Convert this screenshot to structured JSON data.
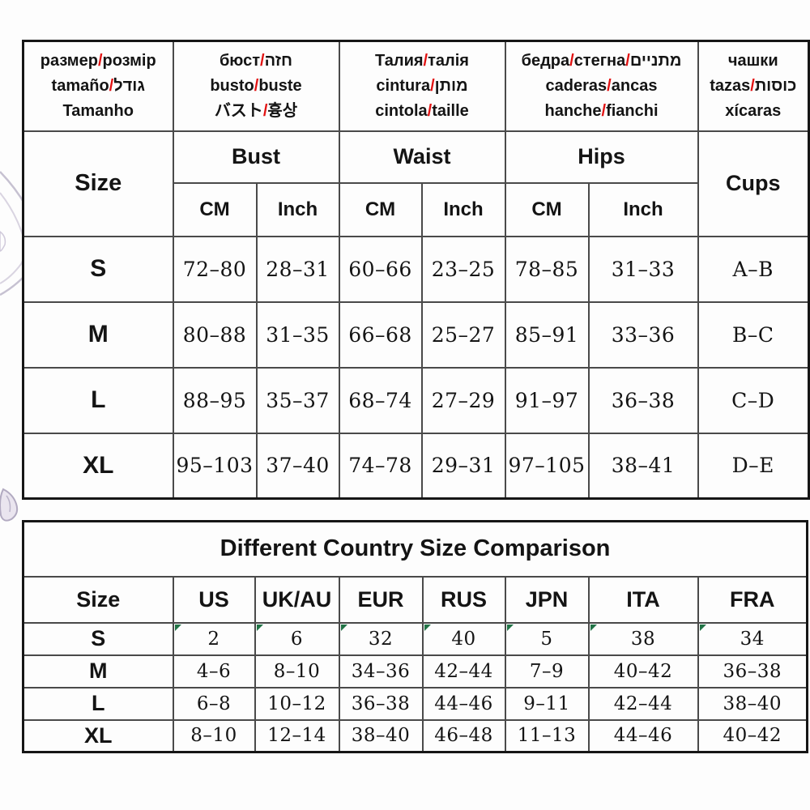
{
  "colors": {
    "slash_red": "#e21212",
    "marker_green": "#217346",
    "border_dark": "#161616",
    "border_inner": "#4a4a4a"
  },
  "size_chart": {
    "lang_headers": [
      {
        "lines": [
          "размер/розмір",
          "tamaño/גודל",
          "Tamanho"
        ]
      },
      {
        "lines": [
          "бюст/חזה",
          "busto/buste",
          "バスト/흉상"
        ]
      },
      {
        "lines": [
          "Талия/талія",
          "cintura/מותן",
          "cintola/taille"
        ]
      },
      {
        "lines": [
          "бедра/стегна/מתניים",
          "caderas/ancas",
          "hanche/fianchi"
        ]
      },
      {
        "lines": [
          "чашки",
          "tazas/כוסות",
          "xícaras"
        ]
      }
    ],
    "size_label": "Size",
    "group_headers": [
      "Bust",
      "Waist",
      "Hips"
    ],
    "cups_label": "Cups",
    "unit_cm": "CM",
    "unit_inch": "Inch",
    "rows": [
      {
        "size": "S",
        "values": [
          "72–80",
          "28–31",
          "60–66",
          "23–25",
          "78–85",
          "31–33",
          "A–B"
        ]
      },
      {
        "size": "M",
        "values": [
          "80–88",
          "31–35",
          "66–68",
          "25–27",
          "85–91",
          "33–36",
          "B–C"
        ]
      },
      {
        "size": "L",
        "values": [
          "88–95",
          "35–37",
          "68–74",
          "27–29",
          "91–97",
          "36–38",
          "C–D"
        ]
      },
      {
        "size": "XL",
        "values": [
          "95–103",
          "37–40",
          "74–78",
          "29–31",
          "97–105",
          "38–41",
          "D–E"
        ]
      }
    ]
  },
  "country_table": {
    "title": "Different Country Size Comparison",
    "headers": [
      "Size",
      "US",
      "UK/AU",
      "EUR",
      "RUS",
      "JPN",
      "ITA",
      "FRA"
    ],
    "rows": [
      {
        "size": "S",
        "values": [
          "2",
          "6",
          "32",
          "40",
          "5",
          "38",
          "34"
        ],
        "markers": true
      },
      {
        "size": "M",
        "values": [
          "4–6",
          "8–10",
          "34–36",
          "42–44",
          "7–9",
          "40–42",
          "36–38"
        ]
      },
      {
        "size": "L",
        "values": [
          "6–8",
          "10–12",
          "36–38",
          "44–46",
          "9–11",
          "42–44",
          "38–40"
        ]
      },
      {
        "size": "XL",
        "values": [
          "8–10",
          "12–14",
          "38–40",
          "46–48",
          "11–13",
          "44–46",
          "40–42"
        ]
      }
    ]
  }
}
